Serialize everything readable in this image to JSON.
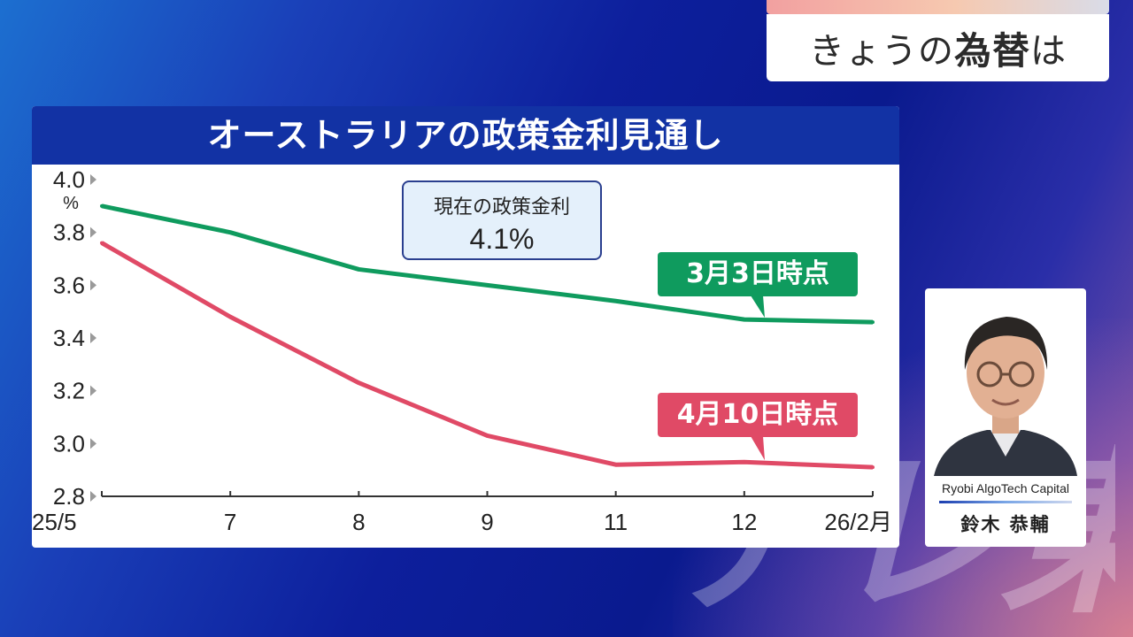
{
  "corner_title": {
    "prefix": "きょうの",
    "emphasis": "為替",
    "suffix": "は"
  },
  "watermark": "テレ東",
  "annotation": {
    "label": "現在の政策金利",
    "value": "4.1%"
  },
  "profile": {
    "company": "Ryobi AlgoTech Capital",
    "name": "鈴木 恭輔"
  },
  "colors": {
    "title_bar": "#1232a4",
    "series_green": "#0f9b5e",
    "series_red": "#e04a66"
  },
  "chart_data": {
    "type": "line",
    "title": "オーストラリアの政策金利見通し",
    "ylabel": "%",
    "ylim": [
      2.8,
      4.0
    ],
    "yticks": [
      "4.0",
      "3.8",
      "3.6",
      "3.4",
      "3.2",
      "3.0",
      "2.8"
    ],
    "categories": [
      "25/5",
      "7",
      "8",
      "9",
      "11",
      "12",
      "26/2月"
    ],
    "series": [
      {
        "name": "3月3日時点",
        "color": "#0f9b5e",
        "values": [
          3.9,
          3.8,
          3.66,
          3.6,
          3.54,
          3.47,
          3.46
        ]
      },
      {
        "name": "4月10日時点",
        "color": "#e04a66",
        "values": [
          3.76,
          3.48,
          3.23,
          3.03,
          2.92,
          2.93,
          2.91
        ]
      }
    ],
    "grid": false
  }
}
